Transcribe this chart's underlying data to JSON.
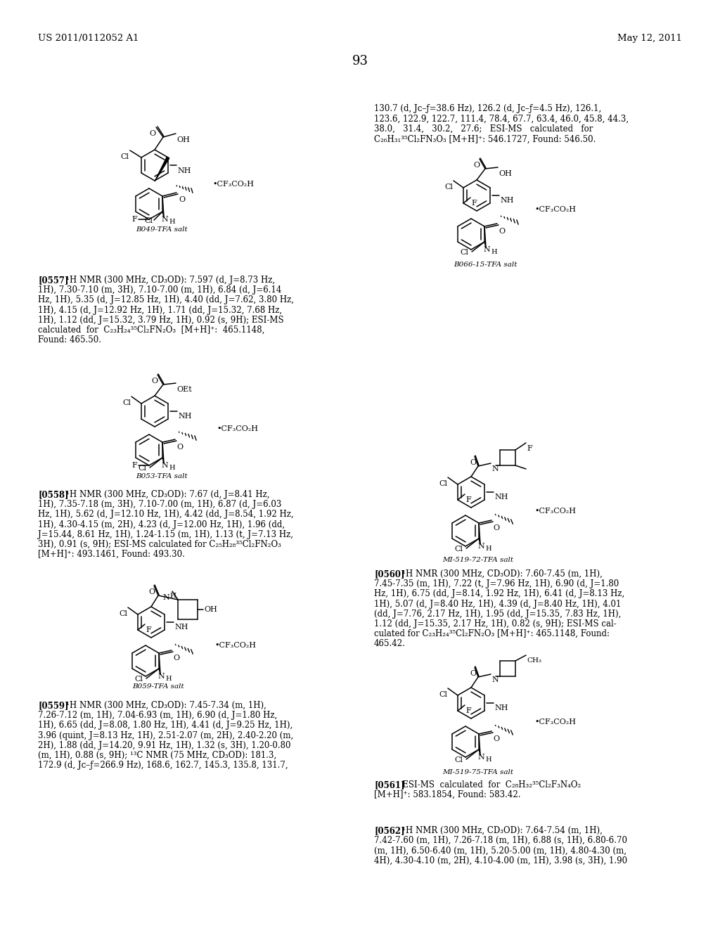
{
  "bg": "#ffffff",
  "header_left": "US 2011/0112052 A1",
  "header_right": "May 12, 2011",
  "page_num": "93",
  "continuation_text": "130.7 (d, Jᴄ–ƒ=38.6 Hz), 126.2 (d, Jᴄ–ƒ=4.5 Hz), 126.1,\n123.6, 122.9, 122.7, 111.4, 78.4, 67.7, 63.4, 46.0, 45.8, 44.3,\n38.0,   31.4,   30.2,   27.6;   ESI-MS   calculated   for\nC₂₆H₃₁³⁵Cl₂FN₃O₃ [M+H]⁺: 546.1727, Found: 546.50.",
  "p0557": "[0557]   ¹H NMR (300 MHz, CD₃OD): 7.597 (d, J=8.73 Hz,\n1H), 7.30-7.10 (m, 3H), 7.10-7.00 (m, 1H), 6.84 (d, J=6.14\nHz, 1H), 5.35 (d, J=12.85 Hz, 1H), 4.40 (dd, J=7.62, 3.80 Hz,\n1H), 4.15 (d, J=12.92 Hz, 1H), 1.71 (dd, J=15.32, 7.68 Hz,\n1H), 1.12 (dd, J=15.32, 3.79 Hz, 1H), 0.92 (s, 9H); ESI-MS\ncalculated  for  C₂₃H₂₄³⁵Cl₂FN₂O₃  [M+H]⁺:  465.1148,\nFound: 465.50.",
  "p0558": "[0558]   ¹H NMR (300 MHz, CD₃OD): 7.67 (d, J=8.41 Hz,\n1H), 7.35-7.18 (m, 3H), 7.10-7.00 (m, 1H), 6.87 (d, J=6.03\nHz, 1H), 5.62 (d, J=12.10 Hz, 1H), 4.42 (dd, J=8.54, 1.92 Hz,\n1H), 4.30-4.15 (m, 2H), 4.23 (d, J=12.00 Hz, 1H), 1.96 (dd,\nJ=15.44, 8.61 Hz, 1H), 1.24-1.15 (m, 1H), 1.13 (t, J=7.13 Hz,\n3H), 0.91 (s, 9H); ESI-MS calculated for C₂₅H₂₈³⁵Cl₂FN₂O₃\n[M+H]⁺: 493.1461, Found: 493.30.",
  "p0559": "[0559]   ¹H NMR (300 MHz, CD₃OD): 7.45-7.34 (m, 1H),\n7.26-7.12 (m, 1H), 7.04-6.93 (m, 1H), 6.90 (d, J=1.80 Hz,\n1H), 6.65 (dd, J=8.08, 1.80 Hz, 1H), 4.41 (d, J=9.25 Hz, 1H),\n3.96 (quint, J=8.13 Hz, 1H), 2.51-2.07 (m, 2H), 2.40-2.20 (m,\n2H), 1.88 (dd, J=14.20, 9.91 Hz, 1H), 1.32 (s, 3H), 1.20-0.80\n(m, 1H), 0.88 (s, 9H); ¹³C NMR (75 MHz, CD₃OD): 181.3,\n172.9 (d, Jᴄ–ƒ=266.9 Hz), 168.6, 162.7, 145.3, 135.8, 131.7,",
  "p0560": "[0560]   ¹H NMR (300 MHz, CD₃OD): 7.60-7.45 (m, 1H),\n7.45-7.35 (m, 1H), 7.22 (t, J=7.96 Hz, 1H), 6.90 (d, J=1.80\nHz, 1H), 6.75 (dd, J=8.14, 1.92 Hz, 1H), 6.41 (d, J=8.13 Hz,\n1H), 5.07 (d, J=8.40 Hz, 1H), 4.39 (d, J=8.40 Hz, 1H), 4.01\n(dd, J=7.76, 2.17 Hz, 1H), 1.95 (dd, J=15.35, 7.83 Hz, 1H),\n1.12 (dd, J=15.35, 2.17 Hz, 1H), 0.82 (s, 9H); ESI-MS cal-\nculated for C₂₃H₂₄³⁵Cl₂FN₂O₃ [M+H]⁺: 465.1148, Found:\n465.42.",
  "p0561": "[0561]   ESI-MS  calculated  for  C₂₈H₃₂³⁵Cl₂F₃N₄O₂\n[M+H]⁺: 583.1854, Found: 583.42.",
  "p0562": "[0562]   ¹H NMR (300 MHz, CD₃OD): 7.64-7.54 (m, 1H),\n7.42-7.60 (m, 1H), 7.26-7.18 (m, 1H), 6.88 (s, 1H), 6.80-6.70\n(m, 1H), 6.50-6.40 (m, 1H), 5.20-5.00 (m, 1H), 4.80-4.30 (m,\n4H), 4.30-4.10 (m, 2H), 4.10-4.00 (m, 1H), 3.98 (s, 3H), 1.90",
  "label_b049": "B049-TFA salt",
  "label_b053": "B053-TFA salt",
  "label_b059": "B059-TFA salt",
  "label_b066": "B066-15-TFA salt",
  "label_mi72": "MI-519-72-TFA salt",
  "label_mi75": "MI-519-75-TFA salt"
}
